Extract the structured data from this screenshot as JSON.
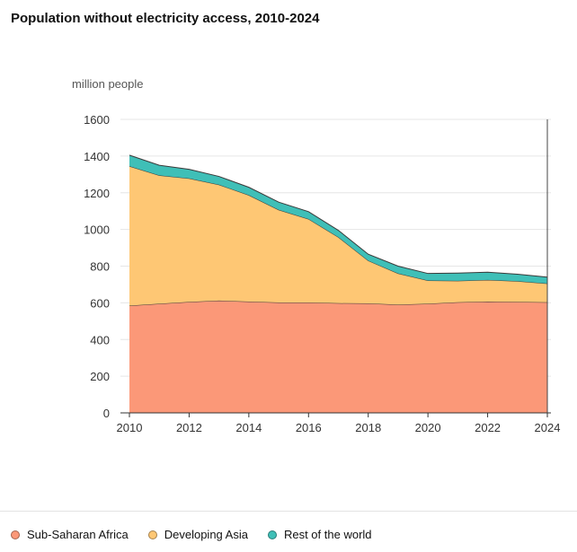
{
  "chart_data": {
    "type": "area",
    "stacked": true,
    "title": "Population without electricity access, 2010-2024",
    "ylabel": "million people",
    "xlabel": "",
    "x": [
      2010,
      2011,
      2012,
      2013,
      2014,
      2015,
      2016,
      2017,
      2018,
      2019,
      2020,
      2021,
      2022,
      2023,
      2024
    ],
    "x_ticks": [
      "2010",
      "2012",
      "2014",
      "2016",
      "2018",
      "2020",
      "2022",
      "2024"
    ],
    "y_ticks": [
      "0",
      "200",
      "400",
      "600",
      "800",
      "1000",
      "1200",
      "1400",
      "1600"
    ],
    "ylim": [
      0,
      1600
    ],
    "grid": true,
    "legend_position": "bottom-left",
    "series": [
      {
        "name": "Sub-Saharan Africa",
        "color": "#fb9878",
        "values": [
          585,
          595,
          605,
          612,
          607,
          602,
          602,
          598,
          597,
          590,
          595,
          603,
          607,
          605,
          603
        ]
      },
      {
        "name": "Developing Asia",
        "color": "#fec774",
        "values": [
          760,
          700,
          673,
          632,
          580,
          505,
          455,
          360,
          233,
          170,
          127,
          117,
          118,
          113,
          102
        ]
      },
      {
        "name": "Rest of the world",
        "color": "#3fbfb7",
        "values": [
          60,
          55,
          50,
          45,
          43,
          42,
          40,
          37,
          35,
          40,
          38,
          42,
          42,
          38,
          35
        ]
      }
    ]
  }
}
